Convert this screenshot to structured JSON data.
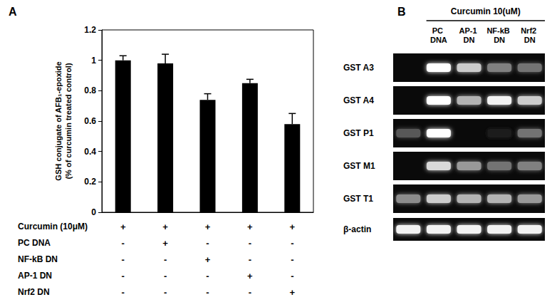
{
  "chart_data": [
    {
      "type": "bar",
      "panel_label": "A",
      "ylabel": "GSH conjugate of AFB₁-epoxide\n(% of curcumin treated control)",
      "categories": [
        null,
        null,
        null,
        null,
        null
      ],
      "values": [
        1.0,
        0.98,
        0.74,
        0.85,
        0.58
      ],
      "errors": [
        0.03,
        0.06,
        0.04,
        0.025,
        0.07
      ],
      "color": "#000000",
      "ylim": [
        0,
        1.2
      ],
      "yticks": [
        0,
        0.2,
        0.4,
        0.6,
        0.8,
        1,
        1.2
      ],
      "grid": false,
      "treatments": [
        {
          "name": "Curcumin (10μM)",
          "marks": [
            "+",
            "+",
            "+",
            "+",
            "+"
          ]
        },
        {
          "name": "PC DNA",
          "marks": [
            "-",
            "+",
            "-",
            "-",
            "-"
          ]
        },
        {
          "name": "NF-kB DN",
          "marks": [
            "-",
            "-",
            "+",
            "-",
            "-"
          ]
        },
        {
          "name": "AP-1 DN",
          "marks": [
            "-",
            "-",
            "-",
            "+",
            "-"
          ]
        },
        {
          "name": "Nrf2 DN",
          "marks": [
            "-",
            "-",
            "-",
            "-",
            "+"
          ]
        }
      ]
    },
    {
      "type": "gel",
      "panel_label": "B",
      "title": "Curcumin 10(uM)",
      "lanes": [
        null,
        "PC DNA",
        "AP-1 DN",
        "NF-kB DN",
        "Nrf2 DN"
      ],
      "rows": [
        "GST A3",
        "GST A4",
        "GST P1",
        "GST M1",
        "GST T1",
        "β-actin"
      ],
      "intensity": [
        [
          0,
          1,
          0.8,
          0.5,
          0.45
        ],
        [
          0,
          1,
          0.7,
          0.95,
          0.8
        ],
        [
          0.35,
          1,
          0,
          0.1,
          0.45
        ],
        [
          0,
          0.85,
          0.6,
          0.45,
          0.5
        ],
        [
          0.55,
          0.8,
          0.7,
          0.7,
          0.6
        ],
        [
          0.95,
          0.95,
          0.95,
          0.95,
          0.95
        ]
      ]
    }
  ]
}
